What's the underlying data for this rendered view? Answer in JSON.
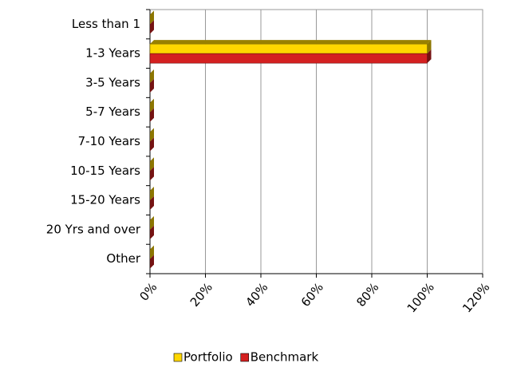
{
  "chart_data": {
    "type": "hbar",
    "categories": [
      "Less than 1",
      "1-3 Years",
      "3-5 Years",
      "5-7 Years",
      "7-10 Years",
      "10-15 Years",
      "15-20 Years",
      "20 Yrs and over",
      "Other"
    ],
    "series": [
      {
        "name": "Portfolio",
        "color": "#ffd700",
        "values": [
          0,
          100,
          0,
          0,
          0,
          0,
          0,
          0,
          0
        ]
      },
      {
        "name": "Benchmark",
        "color": "#d42020",
        "values": [
          0,
          100,
          0,
          0,
          0,
          0,
          0,
          0,
          0
        ]
      }
    ],
    "xlim": [
      0,
      120
    ],
    "xticks": [
      {
        "value": 0,
        "label": "0%"
      },
      {
        "value": 20,
        "label": "20%"
      },
      {
        "value": 40,
        "label": "40%"
      },
      {
        "value": 60,
        "label": "60%"
      },
      {
        "value": 80,
        "label": "80%"
      },
      {
        "value": 100,
        "label": "100%"
      },
      {
        "value": 120,
        "label": "120%"
      }
    ],
    "grid": true,
    "legend": "bottom"
  }
}
